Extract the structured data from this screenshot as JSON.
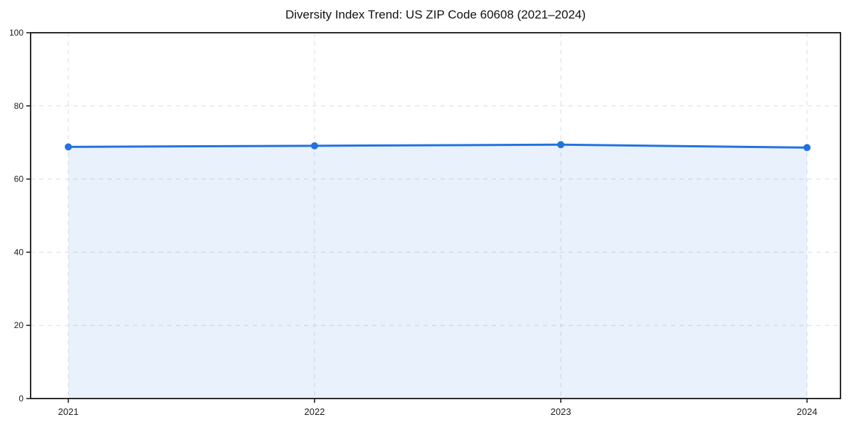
{
  "chart": {
    "title": "Diversity Index Trend: US ZIP Code 60608 (2021–2024)"
  },
  "chart_data": {
    "type": "area",
    "title": "Diversity Index Trend: US ZIP Code 60608 (2021–2024)",
    "categories": [
      "2021",
      "2022",
      "2023",
      "2024"
    ],
    "series": [
      {
        "name": "Diversity Index",
        "values": [
          68.8,
          69.1,
          69.4,
          68.6
        ]
      }
    ],
    "xlabel": "",
    "ylabel": "",
    "ylim": [
      0,
      100
    ],
    "y_ticks": [
      0,
      20,
      40,
      60,
      80,
      100
    ],
    "grid": true,
    "grid_style": "dashed",
    "legend": "none",
    "colors": {
      "line": "#2272e0",
      "marker": "#2272e0",
      "fill": "#2272e0",
      "fill_opacity": 0.1,
      "grid": "#dcdcdc",
      "spine": "#141414",
      "text": "#1a1a1a",
      "background": "#ffffff"
    }
  }
}
